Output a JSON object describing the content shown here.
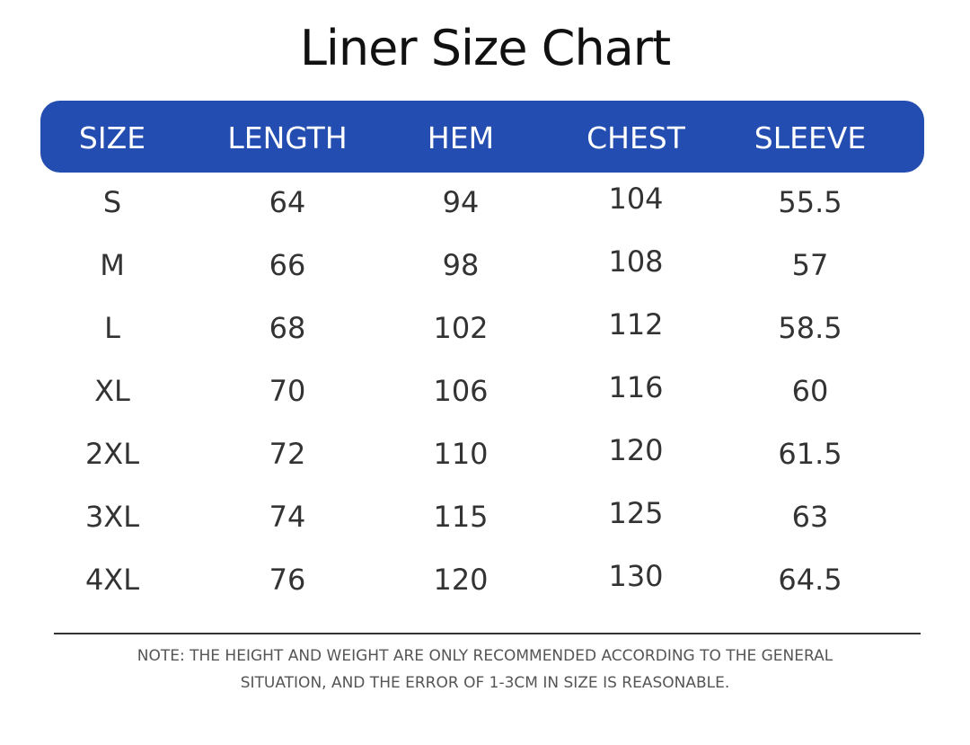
{
  "title": "Liner Size Chart",
  "table": {
    "header": [
      "SIZE",
      "LENGTH",
      "HEM",
      "CHEST",
      "SLEEVE"
    ],
    "rows": [
      [
        "S",
        "64",
        "94",
        "104",
        "55.5"
      ],
      [
        "M",
        "66",
        "98",
        "108",
        "57"
      ],
      [
        "L",
        "68",
        "102",
        "112",
        "58.5"
      ],
      [
        "XL",
        "70",
        "106",
        "116",
        "60"
      ],
      [
        "2XL",
        "72",
        "110",
        "120",
        "61.5"
      ],
      [
        "3XL",
        "74",
        "115",
        "125",
        "63"
      ],
      [
        "4XL",
        "76",
        "120",
        "130",
        "64.5"
      ]
    ]
  },
  "note": [
    "NOTE: THE HEIGHT AND WEIGHT ARE ONLY RECOMMENDED ACCORDING TO THE GENERAL",
    "SITUATION, AND THE ERROR OF 1-3CM IN SIZE IS REASONABLE."
  ]
}
